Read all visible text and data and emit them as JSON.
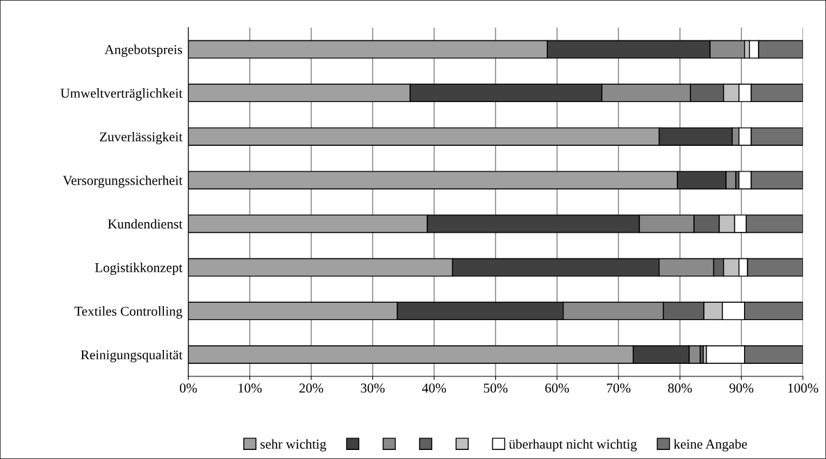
{
  "chart_data": {
    "type": "bar",
    "orientation": "horizontal",
    "stacked": true,
    "categories": [
      "Angebotspreis",
      "Umweltverträglichkeit",
      "Zuverlässigkeit",
      "Versorgungssicherheit",
      "Kundendienst",
      "Logistikkonzept",
      "Textiles Controlling",
      "Reinigungsqualität"
    ],
    "series": [
      {
        "name": "sehr wichtig",
        "color": "#a0a0a0",
        "values": [
          58.4,
          36.1,
          76.6,
          79.6,
          38.9,
          43.0,
          34.0,
          72.4
        ]
      },
      {
        "color": "#404040",
        "values": [
          26.5,
          31.2,
          11.9,
          7.9,
          34.5,
          33.6,
          27.0,
          9.1
        ]
      },
      {
        "color": "#8a8a8a",
        "values": [
          5.6,
          14.4,
          1.1,
          1.6,
          8.9,
          8.9,
          16.3,
          1.8
        ]
      },
      {
        "color": "#606060",
        "values": [
          0,
          5.4,
          0,
          0.5,
          4.1,
          1.6,
          6.6,
          0.5
        ]
      },
      {
        "color": "#c0c0c0",
        "values": [
          0.8,
          2.5,
          0,
          0,
          2.5,
          2.5,
          3.0,
          0.5
        ]
      },
      {
        "name": "überhaupt nicht wichtig",
        "color": "#ffffff",
        "values": [
          1.5,
          2.0,
          2.0,
          2.0,
          1.9,
          1.4,
          3.6,
          6.2
        ]
      },
      {
        "name": "keine Angabe",
        "color": "#707070",
        "values": [
          7.2,
          8.4,
          8.4,
          8.4,
          9.2,
          9.0,
          9.5,
          9.5
        ]
      }
    ],
    "xlim": [
      0,
      100
    ],
    "xticks": [
      {
        "value": 0,
        "label": "0%"
      },
      {
        "value": 10,
        "label": "10%"
      },
      {
        "value": 20,
        "label": "20%"
      },
      {
        "value": 30,
        "label": "30%"
      },
      {
        "value": 40,
        "label": "40%"
      },
      {
        "value": 50,
        "label": "50%"
      },
      {
        "value": 60,
        "label": "60%"
      },
      {
        "value": 70,
        "label": "70%"
      },
      {
        "value": 80,
        "label": "80%"
      },
      {
        "value": 90,
        "label": "90%"
      },
      {
        "value": 100,
        "label": "100%"
      }
    ],
    "grid": "x",
    "legend": "bottom"
  }
}
